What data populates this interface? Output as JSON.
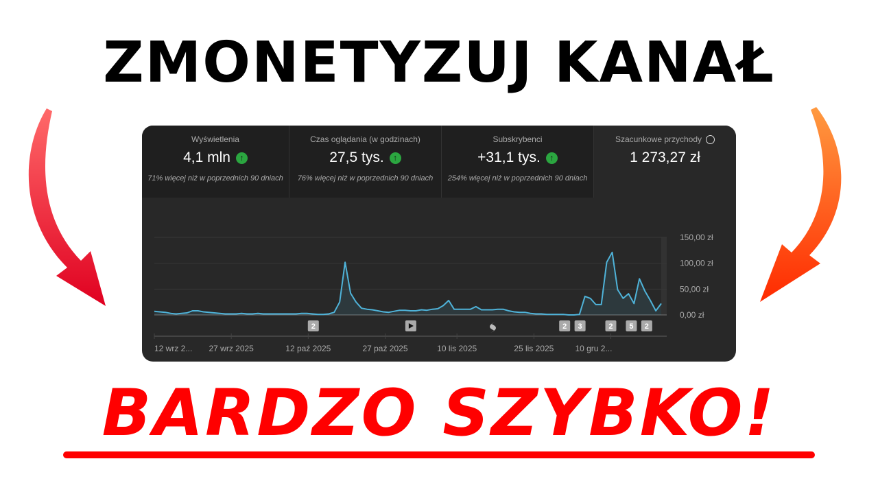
{
  "headline": "ZMONETYZUJ KANAŁ",
  "subline": "BARDZO SZYBKO!",
  "colors": {
    "accent_red": "#ff0000",
    "line": "#4fb3d9",
    "up_badge": "#2ba640",
    "panel": "#282828"
  },
  "metrics": [
    {
      "label": "Wyświetlenia",
      "value": "4,1 mln",
      "trend_icon": "arrow-up-icon",
      "note": "71% więcej niż w poprzednich 90 dniach"
    },
    {
      "label": "Czas oglądania (w godzinach)",
      "value": "27,5 tys.",
      "trend_icon": "arrow-up-icon",
      "note": "76% więcej niż w poprzednich 90 dniach"
    },
    {
      "label": "Subskrybenci",
      "value": "+31,1 tys.",
      "trend_icon": "arrow-up-icon",
      "note": "254% więcej niż w poprzednich 90 dniach"
    },
    {
      "label": "Szacunkowe przychody",
      "value": "1 273,27 zł",
      "icon": "clock-icon",
      "selected": true
    }
  ],
  "chart_data": {
    "type": "area",
    "ylabel": "",
    "xlabel": "",
    "ylim": [
      0,
      150
    ],
    "yticks": [
      "0,00 zł",
      "50,00 zł",
      "100,00 zł",
      "150,00 zł"
    ],
    "ytick_values": [
      0,
      50,
      100,
      150
    ],
    "xticks": [
      "12 wrz 2...",
      "27 wrz 2025",
      "12 paź 2025",
      "27 paź 2025",
      "10 lis 2025",
      "25 lis 2025",
      "10 gru 2..."
    ],
    "xtick_days": [
      0,
      15,
      30,
      45,
      59,
      74,
      89
    ],
    "grid": true,
    "x_start": "2025-09-12",
    "values": [
      7,
      6,
      5,
      3,
      2,
      3,
      4,
      8,
      8,
      6,
      5,
      4,
      3,
      2,
      2,
      2,
      3,
      2,
      2,
      3,
      2,
      2,
      2,
      2,
      2,
      2,
      2,
      3,
      3,
      2,
      1,
      1,
      2,
      5,
      25,
      102,
      42,
      25,
      13,
      11,
      10,
      8,
      6,
      5,
      7,
      9,
      9,
      8,
      8,
      10,
      9,
      11,
      12,
      18,
      28,
      11,
      11,
      11,
      11,
      16,
      10,
      10,
      10,
      11,
      11,
      8,
      6,
      5,
      5,
      3,
      2,
      2,
      1,
      1,
      1,
      1,
      0,
      0,
      1,
      36,
      32,
      20,
      20,
      102,
      121,
      49,
      32,
      41,
      22,
      70,
      46,
      28,
      8,
      22
    ],
    "annotations": [
      {
        "day": 31,
        "label": "2",
        "icon": ""
      },
      {
        "day": 50,
        "label": "",
        "icon": "play-icon"
      },
      {
        "day": 66,
        "label": "",
        "icon": "shorts-icon"
      },
      {
        "day": 80,
        "label": "2",
        "icon": ""
      },
      {
        "day": 83,
        "label": "3",
        "icon": ""
      },
      {
        "day": 89,
        "label": "2",
        "icon": ""
      },
      {
        "day": 93,
        "label": "5",
        "icon": ""
      },
      {
        "day": 96,
        "label": "2",
        "icon": ""
      }
    ]
  }
}
